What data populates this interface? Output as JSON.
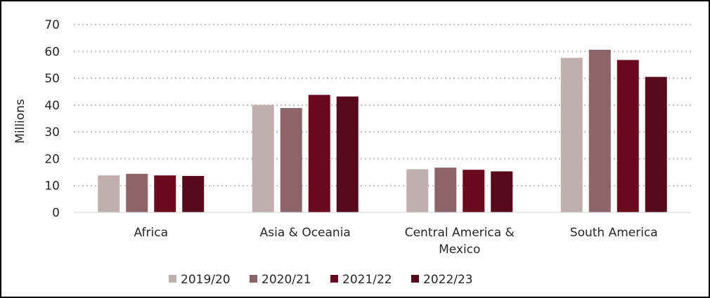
{
  "chart_data": {
    "type": "bar",
    "title": "",
    "xlabel": "",
    "ylabel": "Millions",
    "ylim": [
      0,
      70
    ],
    "yticks": [
      0,
      10,
      20,
      30,
      40,
      50,
      60,
      70
    ],
    "grid": true,
    "legend_position": "bottom",
    "categories": [
      "Africa",
      "Asia & Oceania",
      "Central America & Mexico",
      "South America"
    ],
    "category_lines": [
      [
        "Africa"
      ],
      [
        "Asia & Oceania"
      ],
      [
        "Central America &",
        "Mexico"
      ],
      [
        "South America"
      ]
    ],
    "series": [
      {
        "name": "2019/20",
        "color": "#bfafaf",
        "values": [
          13.8,
          40.1,
          16.1,
          57.6
        ]
      },
      {
        "name": "2020/21",
        "color": "#8c6569",
        "values": [
          14.4,
          38.9,
          16.7,
          60.6
        ]
      },
      {
        "name": "2021/22",
        "color": "#6b0a1f",
        "values": [
          13.8,
          43.8,
          15.9,
          56.8
        ]
      },
      {
        "name": "2022/23",
        "color": "#560a1b",
        "values": [
          13.6,
          43.2,
          15.3,
          50.5
        ]
      }
    ]
  }
}
